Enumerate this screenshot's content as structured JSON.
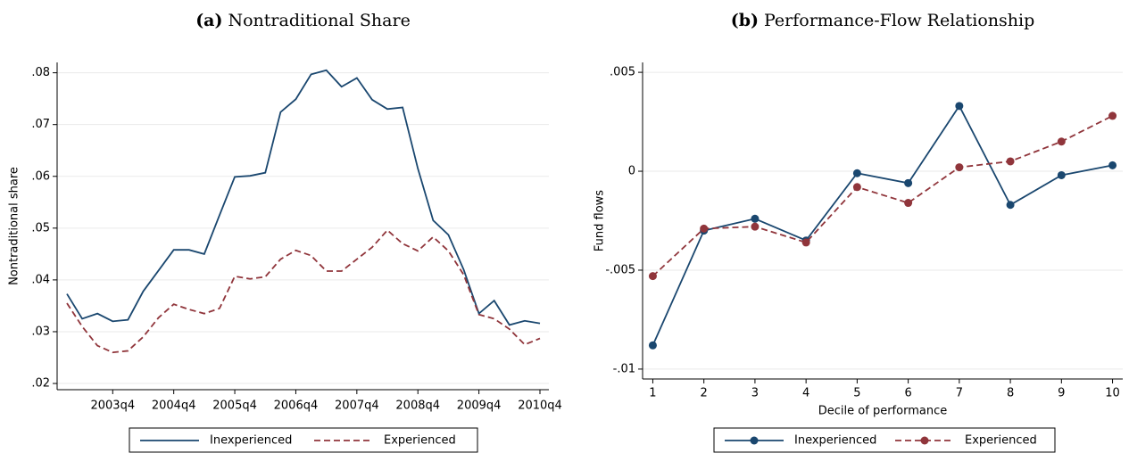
{
  "chart_data": [
    {
      "type": "line",
      "panel": "(a)",
      "title": "Nontraditional Share",
      "y_label": "Nontraditional share",
      "categories": [
        null,
        null,
        null,
        "2003q4",
        null,
        null,
        null,
        "2004q4",
        null,
        null,
        null,
        "2005q4",
        null,
        null,
        null,
        "2006q4",
        null,
        null,
        null,
        "2007q4",
        null,
        null,
        null,
        "2008q4",
        null,
        null,
        null,
        "2009q4",
        null,
        null,
        null,
        "2010q4"
      ],
      "series": [
        {
          "name": "Inexperienced",
          "color": "#1a476f",
          "line_style": "solid",
          "values": [
            0.0373,
            0.0325,
            0.0335,
            0.032,
            0.0323,
            0.0378,
            0.0418,
            0.0458,
            0.0458,
            0.045,
            0.0525,
            0.0599,
            0.0601,
            0.0607,
            0.0724,
            0.0749,
            0.0797,
            0.0805,
            0.0773,
            0.079,
            0.0748,
            0.073,
            0.0733,
            0.0615,
            0.0515,
            0.0487,
            0.042,
            0.0335,
            0.036,
            0.0313,
            0.0321,
            0.0316
          ]
        },
        {
          "name": "Experienced",
          "color": "#90353b",
          "line_style": "dashed",
          "values": [
            0.0355,
            0.031,
            0.0273,
            0.026,
            0.0263,
            0.029,
            0.0327,
            0.0353,
            0.0343,
            0.0335,
            0.0345,
            0.0407,
            0.0402,
            0.0406,
            0.044,
            0.0457,
            0.0447,
            0.0417,
            0.0417,
            0.044,
            0.0463,
            0.0496,
            0.047,
            0.0456,
            0.0483,
            0.0456,
            0.041,
            0.0333,
            0.0325,
            0.0305,
            0.0275,
            0.0287
          ]
        }
      ],
      "ylim": [
        0.0188,
        0.082
      ],
      "yticks": [
        {
          "value": 0.02,
          "label": ".02"
        },
        {
          "value": 0.03,
          "label": ".03"
        },
        {
          "value": 0.04,
          "label": ".04"
        },
        {
          "value": 0.05,
          "label": ".05"
        },
        {
          "value": 0.06,
          "label": ".06"
        },
        {
          "value": 0.07,
          "label": ".07"
        },
        {
          "value": 0.08,
          "label": ".08"
        }
      ],
      "grid": true,
      "markers": false
    },
    {
      "type": "line",
      "panel": "(b)",
      "title": "Performance-Flow Relationship",
      "y_label": "Fund flows",
      "x_label": "Decile of performance",
      "x": [
        1,
        2,
        3,
        4,
        5,
        6,
        7,
        8,
        9,
        10
      ],
      "series": [
        {
          "name": "Inexperienced",
          "color": "#1a476f",
          "line_style": "solid",
          "values": [
            -0.0088,
            -0.003,
            -0.0024,
            -0.0035,
            -0.0001,
            -0.0006,
            0.0033,
            -0.0017,
            -0.0002,
            0.0003
          ]
        },
        {
          "name": "Experienced",
          "color": "#90353b",
          "line_style": "dashed",
          "values": [
            -0.0053,
            -0.0029,
            -0.0028,
            -0.0036,
            -0.0008,
            -0.0016,
            0.0002,
            0.0005,
            0.0015,
            0.0028
          ]
        }
      ],
      "xlim": [
        0.8,
        10.2
      ],
      "xticks": [
        1,
        2,
        3,
        4,
        5,
        6,
        7,
        8,
        9,
        10
      ],
      "ylim": [
        -0.0105,
        0.0055
      ],
      "yticks": [
        {
          "value": -0.01,
          "label": "-.01"
        },
        {
          "value": -0.005,
          "label": "-.005"
        },
        0,
        {
          "value": 0.005,
          "label": ".005"
        }
      ],
      "grid": true,
      "markers": true
    }
  ]
}
